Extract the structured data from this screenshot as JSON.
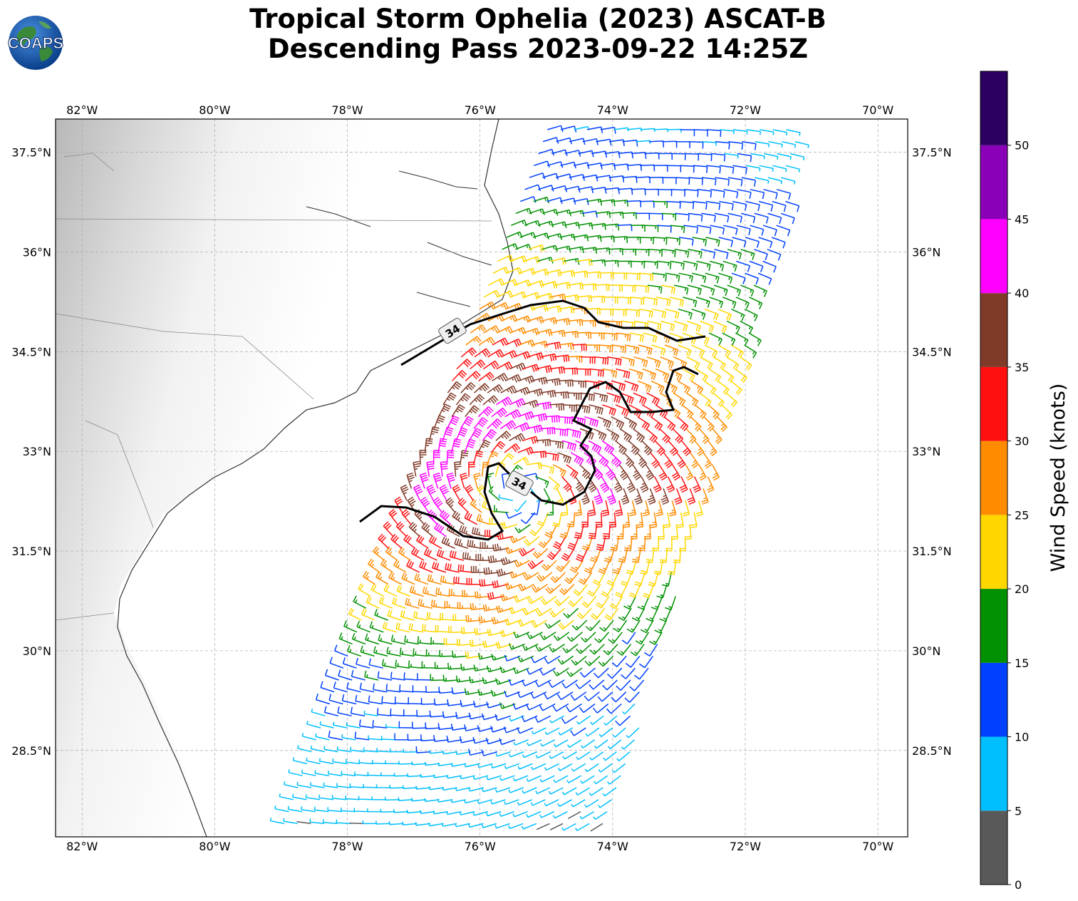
{
  "title": {
    "line1": "Tropical Storm Ophelia (2023) ASCAT-B",
    "line2": "Descending Pass 2023-09-22 14:25Z"
  },
  "logo": {
    "text": "COAPS",
    "icon": "globe-logo-icon"
  },
  "map": {
    "lon_range": [
      -82.4,
      -69.55
    ],
    "lat_range": [
      27.2,
      38.0
    ],
    "lon_ticks": [
      "82°W",
      "80°W",
      "78°W",
      "76°W",
      "74°W",
      "72°W",
      "70°W"
    ],
    "lat_ticks": [
      "37.5°N",
      "36°N",
      "34.5°N",
      "33°N",
      "31.5°N",
      "30°N",
      "28.5°N"
    ],
    "contour_label": "34",
    "storm_center": [
      -75.4,
      32.4
    ]
  },
  "colorbar": {
    "label": "Wind Speed (knots)",
    "ticks": [
      "0",
      "5",
      "10",
      "15",
      "20",
      "25",
      "30",
      "35",
      "40",
      "45",
      "50"
    ],
    "bins": [
      {
        "min": 0,
        "max": 5,
        "color": "#595959"
      },
      {
        "min": 5,
        "max": 10,
        "color": "#00bfff"
      },
      {
        "min": 10,
        "max": 15,
        "color": "#0040ff"
      },
      {
        "min": 15,
        "max": 20,
        "color": "#009000"
      },
      {
        "min": 20,
        "max": 25,
        "color": "#ffd700"
      },
      {
        "min": 25,
        "max": 30,
        "color": "#ff8c00"
      },
      {
        "min": 30,
        "max": 35,
        "color": "#ff1010"
      },
      {
        "min": 35,
        "max": 40,
        "color": "#7f3a28"
      },
      {
        "min": 40,
        "max": 45,
        "color": "#ff00ff"
      },
      {
        "min": 45,
        "max": 50,
        "color": "#8a00b8"
      },
      {
        "min": 50,
        "max": 55,
        "color": "#2b0060"
      }
    ]
  },
  "chart_data": {
    "type": "scatter",
    "title": "Tropical Storm Ophelia (2023) ASCAT-B Descending Pass 2023-09-22 14:25Z",
    "xlabel": "",
    "ylabel": "",
    "variable": "Wind Speed (knots)",
    "xlim": [
      -82.4,
      -69.55
    ],
    "ylim": [
      27.2,
      38.0
    ],
    "storm_center": [
      -75.4,
      32.4
    ],
    "contour_level_kt": 34
  }
}
